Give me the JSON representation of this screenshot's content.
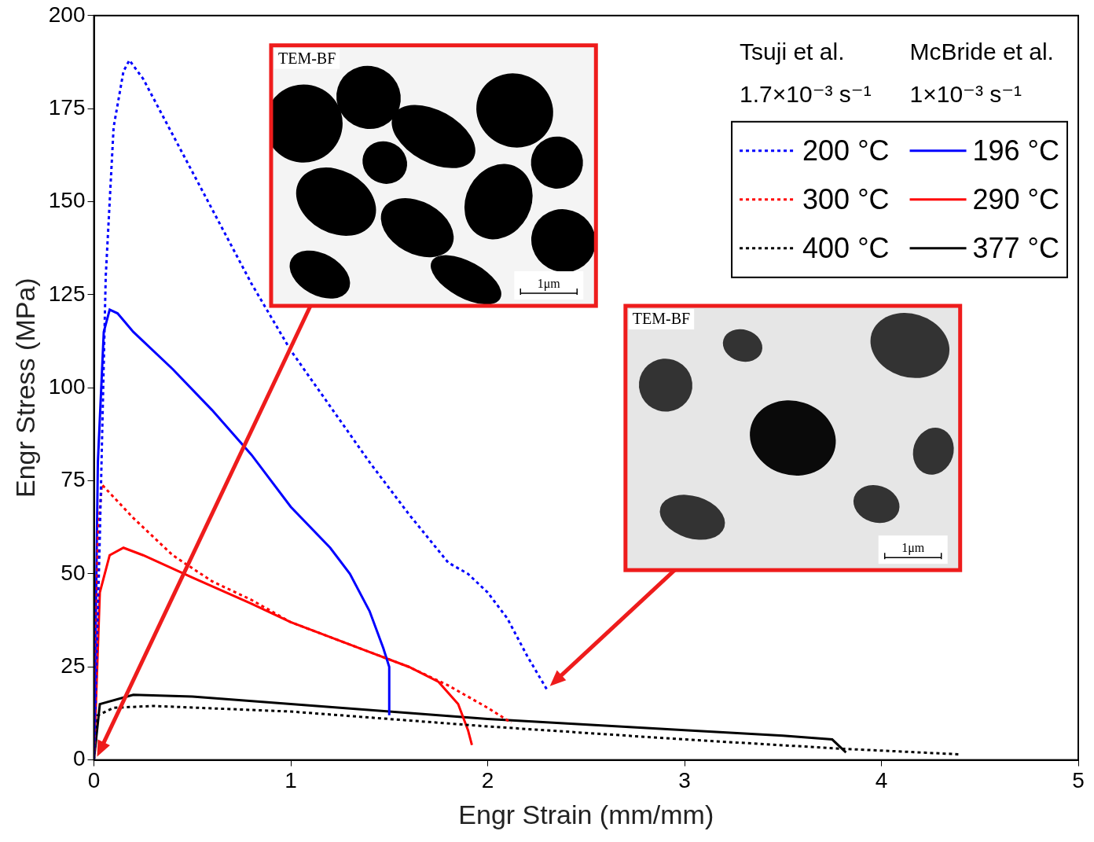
{
  "chart_data": {
    "type": "line",
    "x_label": "Engr Strain (mm/mm)",
    "y_label": "Engr Stress (MPa)",
    "xlim": [
      0,
      5
    ],
    "xticks": [
      0,
      1,
      2,
      3,
      4,
      5
    ],
    "ylim": [
      0,
      200
    ],
    "yticks": [
      0,
      25,
      50,
      75,
      100,
      125,
      150,
      175,
      200
    ],
    "grid": false,
    "legend": "upper right",
    "legend_groups": [
      {
        "name": "Tsuji et al.",
        "rate": "1.7×10⁻³ s⁻¹"
      },
      {
        "name": "McBride et al.",
        "rate": "1×10⁻³ s⁻¹"
      }
    ],
    "series": [
      {
        "name": "200 °C",
        "group": "Tsuji et al.",
        "color": "#0000ff",
        "line_style": "dotted",
        "x": [
          0,
          0.03,
          0.06,
          0.1,
          0.15,
          0.18,
          0.25,
          0.4,
          0.6,
          0.8,
          1.0,
          1.2,
          1.4,
          1.6,
          1.8,
          1.9,
          2.0,
          2.1,
          2.2,
          2.3
        ],
        "values": [
          0,
          60,
          130,
          170,
          185,
          188,
          183,
          168,
          148,
          128,
          110,
          95,
          80,
          66,
          53,
          50,
          45,
          38,
          28,
          19
        ]
      },
      {
        "name": "300 °C",
        "group": "Tsuji et al.",
        "color": "#ff0000",
        "line_style": "dotted",
        "x": [
          0,
          0.02,
          0.04,
          0.2,
          0.4,
          0.6,
          0.8,
          1.0,
          1.2,
          1.4,
          1.6,
          1.8,
          2.0,
          2.12
        ],
        "values": [
          0,
          60,
          74,
          65,
          55,
          48,
          43,
          37,
          33,
          29,
          25,
          20,
          14,
          10
        ]
      },
      {
        "name": "400 °C",
        "group": "Tsuji et al.",
        "color": "#000000",
        "line_style": "dotted",
        "x": [
          0,
          0.02,
          0.1,
          0.3,
          1.0,
          2.0,
          3.0,
          3.8,
          4.0,
          4.4
        ],
        "values": [
          0,
          12,
          14,
          14.5,
          13,
          9,
          5.5,
          3,
          2.5,
          1.5
        ]
      },
      {
        "name": "196 °C",
        "group": "McBride et al.",
        "color": "#0000ff",
        "line_style": "solid",
        "x": [
          0,
          0.02,
          0.05,
          0.08,
          0.12,
          0.2,
          0.4,
          0.6,
          0.8,
          1.0,
          1.2,
          1.3,
          1.4,
          1.47,
          1.5,
          1.5
        ],
        "values": [
          0,
          80,
          115,
          121,
          120,
          115,
          105,
          94,
          82,
          68,
          57,
          50,
          40,
          30,
          25,
          12
        ]
      },
      {
        "name": "290 °C",
        "group": "McBride et al.",
        "color": "#ff0000",
        "line_style": "solid",
        "x": [
          0,
          0.03,
          0.08,
          0.15,
          0.25,
          0.5,
          0.8,
          1.0,
          1.2,
          1.4,
          1.6,
          1.75,
          1.85,
          1.9,
          1.92
        ],
        "values": [
          0,
          45,
          55,
          57,
          55,
          49,
          42,
          37,
          33,
          29,
          25,
          21,
          15,
          8,
          4
        ]
      },
      {
        "name": "377 °C",
        "group": "McBride et al.",
        "color": "#000000",
        "line_style": "solid",
        "x": [
          0,
          0.03,
          0.2,
          0.5,
          1.0,
          2.0,
          3.0,
          3.5,
          3.75,
          3.8,
          3.82
        ],
        "values": [
          0,
          15,
          17.5,
          17,
          15,
          11,
          8,
          6.5,
          5.5,
          3,
          2
        ]
      }
    ],
    "annotations": [
      {
        "label": "TEM-BF",
        "scale_bar": "1μm",
        "arrow_to": {
          "x": 0,
          "y": 0
        }
      },
      {
        "label": "TEM-BF",
        "scale_bar": "1μm",
        "arrow_to": {
          "x": 2.3,
          "y": 19
        }
      }
    ]
  }
}
